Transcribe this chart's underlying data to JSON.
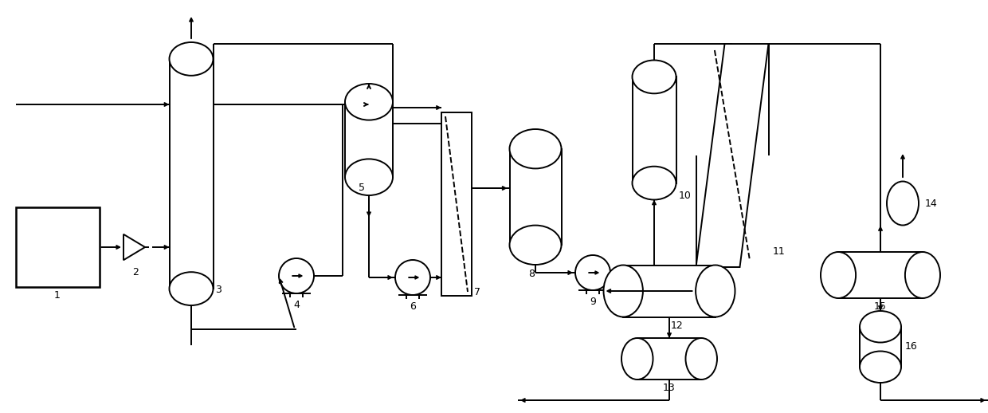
{
  "bg": "#ffffff",
  "lc": "#000000",
  "lw": 1.4,
  "fw": 12.4,
  "fh": 5.18,
  "dpi": 100
}
